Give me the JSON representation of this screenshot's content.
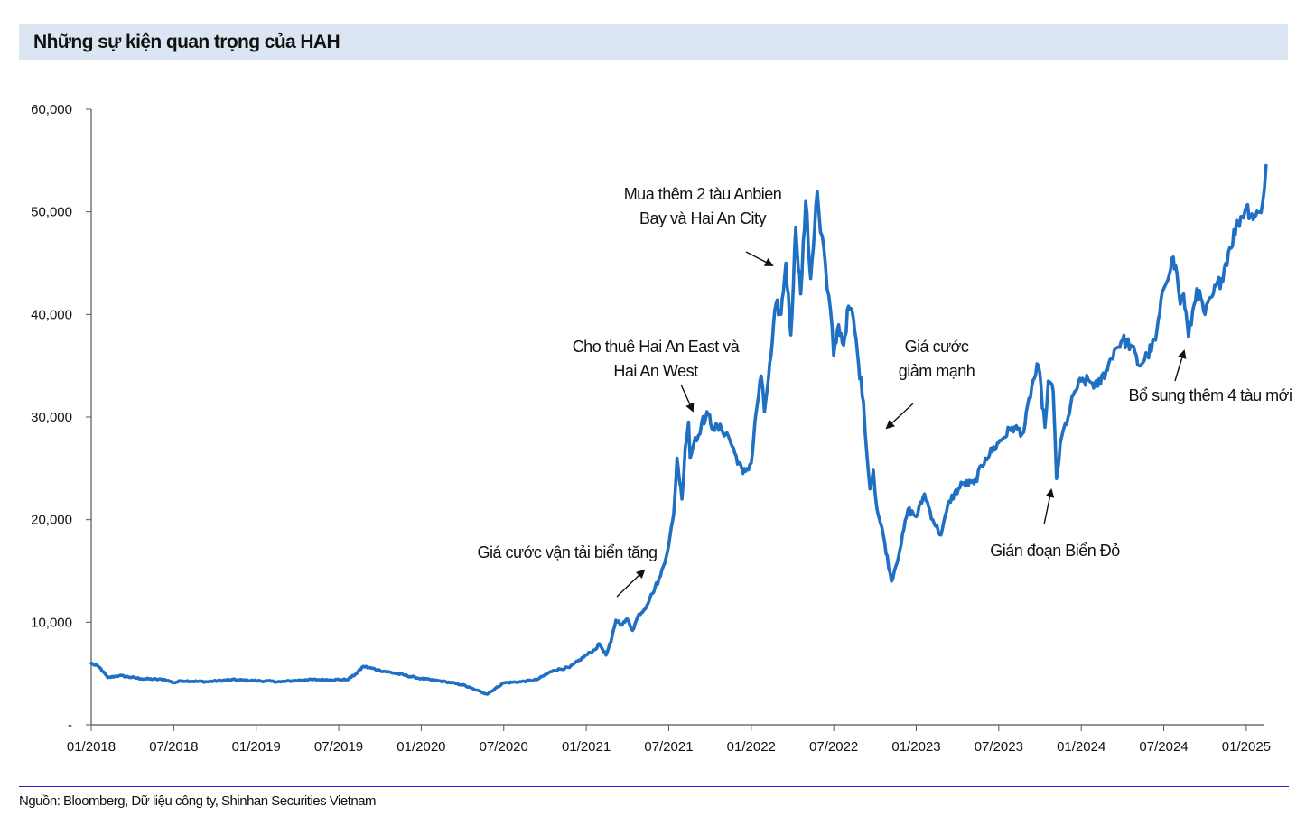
{
  "title": "Những sự kiện quan trọng của HAH",
  "source": "Nguồn: Bloomberg, Dữ liệu công ty, Shinhan Securities Vietnam",
  "colors": {
    "line": "#1f6fc2",
    "title_bg": "#dce6f2",
    "source_rule": "#2323d6"
  },
  "chart_data": {
    "type": "line",
    "title": "Những sự kiện quan trọng của HAH",
    "xlabel": "",
    "ylabel": "",
    "ylim": [
      0,
      60000
    ],
    "xlim": [
      2018.0,
      2025.25
    ],
    "y_ticks": [
      {
        "value": 0,
        "label": "-"
      },
      {
        "value": 10000,
        "label": "10,000"
      },
      {
        "value": 20000,
        "label": "20,000"
      },
      {
        "value": 30000,
        "label": "30,000"
      },
      {
        "value": 40000,
        "label": "40,000"
      },
      {
        "value": 50000,
        "label": "50,000"
      },
      {
        "value": 60000,
        "label": "60,000"
      }
    ],
    "x_ticks": [
      {
        "value": 2018.0,
        "label": "01/2018"
      },
      {
        "value": 2018.5,
        "label": "07/2018"
      },
      {
        "value": 2019.0,
        "label": "01/2019"
      },
      {
        "value": 2019.5,
        "label": "07/2019"
      },
      {
        "value": 2020.0,
        "label": "01/2020"
      },
      {
        "value": 2020.5,
        "label": "07/2020"
      },
      {
        "value": 2021.0,
        "label": "01/2021"
      },
      {
        "value": 2021.5,
        "label": "07/2021"
      },
      {
        "value": 2022.0,
        "label": "01/2022"
      },
      {
        "value": 2022.5,
        "label": "07/2022"
      },
      {
        "value": 2023.0,
        "label": "01/2023"
      },
      {
        "value": 2023.5,
        "label": "07/2023"
      },
      {
        "value": 2024.0,
        "label": "01/2024"
      },
      {
        "value": 2024.5,
        "label": "07/2024"
      },
      {
        "value": 2025.0,
        "label": "01/2025"
      }
    ],
    "series": [
      {
        "name": "HAH",
        "x": [
          2018.0,
          2018.05,
          2018.1,
          2018.17,
          2018.3,
          2018.45,
          2018.5,
          2018.55,
          2018.7,
          2018.85,
          2019.0,
          2019.15,
          2019.3,
          2019.45,
          2019.55,
          2019.6,
          2019.65,
          2019.75,
          2019.85,
          2020.0,
          2020.15,
          2020.25,
          2020.33,
          2020.4,
          2020.5,
          2020.6,
          2020.7,
          2020.8,
          2020.9,
          2021.0,
          2021.05,
          2021.08,
          2021.12,
          2021.15,
          2021.18,
          2021.22,
          2021.25,
          2021.28,
          2021.32,
          2021.35,
          2021.4,
          2021.45,
          2021.5,
          2021.53,
          2021.55,
          2021.58,
          2021.6,
          2021.62,
          2021.63,
          2021.66,
          2021.68,
          2021.7,
          2021.74,
          2021.77,
          2021.82,
          2021.86,
          2021.9,
          2021.95,
          2022.0,
          2022.03,
          2022.06,
          2022.08,
          2022.12,
          2022.15,
          2022.18,
          2022.21,
          2022.24,
          2022.27,
          2022.3,
          2022.33,
          2022.36,
          2022.4,
          2022.42,
          2022.44,
          2022.46,
          2022.48,
          2022.5,
          2022.53,
          2022.56,
          2022.59,
          2022.62,
          2022.65,
          2022.68,
          2022.7,
          2022.72,
          2022.74,
          2022.76,
          2022.8,
          2022.85,
          2022.9,
          2022.95,
          2023.0,
          2023.05,
          2023.1,
          2023.15,
          2023.2,
          2023.28,
          2023.35,
          2023.42,
          2023.5,
          2023.58,
          2023.65,
          2023.7,
          2023.74,
          2023.78,
          2023.8,
          2023.83,
          2023.85,
          2023.88,
          2023.92,
          2023.96,
          2024.0,
          2024.05,
          2024.1,
          2024.15,
          2024.2,
          2024.25,
          2024.3,
          2024.35,
          2024.4,
          2024.45,
          2024.5,
          2024.55,
          2024.58,
          2024.6,
          2024.62,
          2024.65,
          2024.7,
          2024.75,
          2024.8,
          2024.85,
          2024.9,
          2024.95,
          2025.0,
          2025.05,
          2025.08,
          2025.1,
          2025.12
        ],
        "y": [
          6000,
          5600,
          4600,
          4800,
          4500,
          4400,
          4100,
          4300,
          4200,
          4400,
          4300,
          4200,
          4400,
          4400,
          4400,
          4900,
          5700,
          5300,
          5000,
          4500,
          4200,
          3900,
          3400,
          3000,
          4100,
          4200,
          4400,
          5300,
          5600,
          6800,
          7300,
          7900,
          6800,
          8100,
          10200,
          9800,
          10300,
          9200,
          10800,
          11200,
          12800,
          14500,
          17500,
          20500,
          26000,
          22000,
          27000,
          29500,
          26000,
          28000,
          28200,
          29500,
          30200,
          29000,
          28800,
          28200,
          26500,
          24500,
          25500,
          30500,
          34000,
          30500,
          36000,
          41000,
          40000,
          45000,
          38000,
          48500,
          42000,
          51000,
          43500,
          52000,
          48000,
          46500,
          42500,
          40500,
          36000,
          39000,
          37000,
          40800,
          39500,
          35200,
          31500,
          26500,
          23000,
          24800,
          21200,
          18500,
          14000,
          17000,
          21000,
          20300,
          22500,
          20000,
          18500,
          21800,
          23500,
          23500,
          26000,
          27500,
          29000,
          28500,
          33000,
          35000,
          29000,
          33500,
          32500,
          24000,
          28000,
          30000,
          32500,
          33500,
          33500,
          33000,
          34500,
          36500,
          37500,
          37000,
          35000,
          36000,
          37500,
          42500,
          45500,
          44000,
          41000,
          42000,
          37800,
          42500,
          40000,
          42000,
          43500,
          46500,
          49000,
          50500,
          49500,
          50000,
          51000,
          54500
        ]
      }
    ],
    "annotations": [
      {
        "lines": [
          "Giá cước vận tải biển tăng"
        ],
        "target": [
          2021.2,
          16000
        ]
      },
      {
        "lines": [
          "Cho thuê Hai An East và",
          "Hai An West"
        ],
        "target": [
          2021.67,
          29500
        ]
      },
      {
        "lines": [
          "Mua thêm 2 tàu Anbien",
          "Bay và Hai An City"
        ],
        "target": [
          2022.15,
          45500
        ]
      },
      {
        "lines": [
          "Giá cước",
          "giảm mạnh"
        ],
        "target": [
          2022.85,
          28000
        ]
      },
      {
        "lines": [
          "Gián đoạn Biển Đỏ"
        ],
        "target": [
          2023.83,
          22500
        ]
      },
      {
        "lines": [
          "Bổ sung thêm 4 tàu mới"
        ],
        "target": [
          2024.65,
          36500
        ]
      }
    ]
  }
}
